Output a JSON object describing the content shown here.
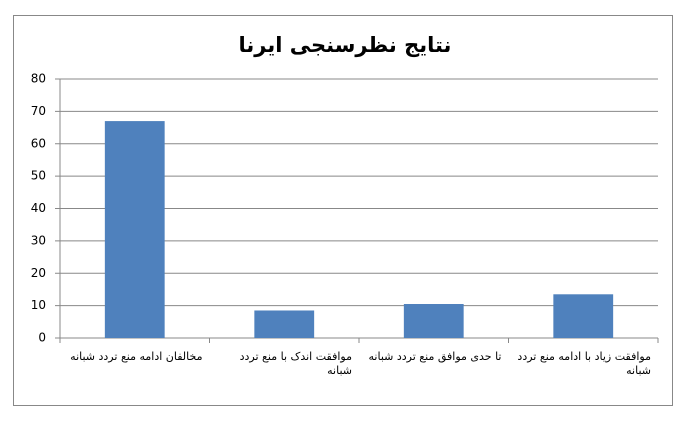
{
  "chart_data": {
    "type": "bar",
    "title": "نتایج نظرسنجی ایرنا",
    "categories": [
      "مخالفان ادامه منع تردد شبانه",
      "موافقت اندک با منع تردد شبانه",
      "تا حدی موافق منع تردد شبانه",
      "موافقت زیاد با ادامه منع تردد شبانه"
    ],
    "values": [
      67,
      8.5,
      10.5,
      13.5
    ],
    "color": "#4f81bd",
    "ylim": [
      0,
      80
    ],
    "yticks": [
      0,
      10,
      20,
      30,
      40,
      50,
      60,
      70,
      80
    ],
    "grid": true
  }
}
